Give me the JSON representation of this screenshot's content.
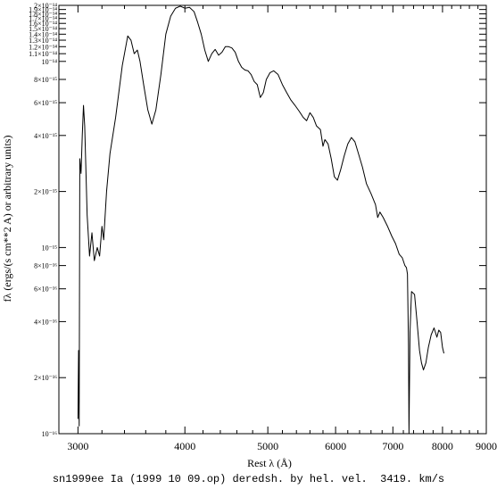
{
  "chart_data": {
    "type": "line",
    "title": "",
    "caption": "sn1999ee Ia (1999 10 09.op) deredsh. by hel. vel.  3419. km/s",
    "xlabel": "Rest λ (Å)",
    "ylabel": "fλ (ergs/(s cm**2 A) or arbitrary units)",
    "x_scale": "log",
    "y_scale": "log",
    "xlim": [
      2850,
      9000
    ],
    "ylim": [
      1e-16,
      2e-14
    ],
    "x_ticks": [
      3000,
      4000,
      5000,
      6000,
      7000,
      8000,
      9000
    ],
    "x_tick_labels": [
      "3000",
      "4000",
      "5000",
      "6000",
      "7000",
      "8000",
      "9000"
    ],
    "y_ticks": [
      1e-16,
      2e-16,
      4e-16,
      6e-16,
      8e-16,
      1e-15,
      2e-15,
      4e-15,
      6e-15,
      8e-15,
      1e-14,
      1.1e-14,
      1.2e-14,
      1.3e-14,
      1.4e-14,
      1.5e-14,
      1.6e-14,
      1.7e-14,
      1.8e-14,
      1.9e-14,
      2e-14
    ],
    "y_tick_labels": [
      "10⁻¹⁶",
      "2×10⁻¹⁶",
      "4×10⁻¹⁶",
      "6×10⁻¹⁶",
      "8×10⁻¹⁶",
      "10⁻¹⁵",
      "2×10⁻¹⁵",
      "4×10⁻¹⁵",
      "6×10⁻¹⁵",
      "8×10⁻¹⁵",
      "10⁻¹⁴",
      "1.1×10⁻¹⁴",
      "1.2×10⁻¹⁴",
      "1.3×10⁻¹⁴",
      "1.4×10⁻¹⁴",
      "1.5×10⁻¹⁴",
      "1.6×10⁻¹⁴",
      "1.7×10⁻¹⁴",
      "1.8×10⁻¹⁴",
      "1.9×10⁻¹⁴",
      "2×10⁻¹⁴"
    ],
    "grid": false,
    "series": [
      {
        "color": "#000000",
        "points": [
          [
            3000,
            1.2e-16
          ],
          [
            3005,
            2.8e-16
          ],
          [
            3010,
            1.1e-16
          ],
          [
            3015,
            3e-15
          ],
          [
            3025,
            2.5e-15
          ],
          [
            3035,
            4e-15
          ],
          [
            3045,
            5.8e-15
          ],
          [
            3055,
            4.5e-15
          ],
          [
            3075,
            1.5e-15
          ],
          [
            3095,
            9e-16
          ],
          [
            3115,
            1.2e-15
          ],
          [
            3135,
            8.5e-16
          ],
          [
            3160,
            1e-15
          ],
          [
            3180,
            9e-16
          ],
          [
            3200,
            1.3e-15
          ],
          [
            3215,
            1.1e-15
          ],
          [
            3240,
            2e-15
          ],
          [
            3270,
            3.2e-15
          ],
          [
            3320,
            5e-15
          ],
          [
            3380,
            9.5e-15
          ],
          [
            3430,
            1.37e-14
          ],
          [
            3460,
            1.3e-14
          ],
          [
            3490,
            1.1e-14
          ],
          [
            3520,
            1.15e-14
          ],
          [
            3545,
            1e-14
          ],
          [
            3580,
            7.5e-15
          ],
          [
            3620,
            5.5e-15
          ],
          [
            3660,
            4.6e-15
          ],
          [
            3700,
            5.5e-15
          ],
          [
            3750,
            8.5e-15
          ],
          [
            3800,
            1.4e-14
          ],
          [
            3850,
            1.75e-14
          ],
          [
            3900,
            1.93e-14
          ],
          [
            3950,
            1.98e-14
          ],
          [
            4000,
            1.93e-14
          ],
          [
            4050,
            1.95e-14
          ],
          [
            4100,
            1.85e-14
          ],
          [
            4140,
            1.62e-14
          ],
          [
            4180,
            1.4e-14
          ],
          [
            4220,
            1.15e-14
          ],
          [
            4260,
            1e-14
          ],
          [
            4300,
            1.1e-14
          ],
          [
            4340,
            1.16e-14
          ],
          [
            4380,
            1.08e-14
          ],
          [
            4420,
            1.12e-14
          ],
          [
            4460,
            1.2e-14
          ],
          [
            4500,
            1.2e-14
          ],
          [
            4540,
            1.18e-14
          ],
          [
            4580,
            1.12e-14
          ],
          [
            4620,
            1e-14
          ],
          [
            4660,
            9.3e-15
          ],
          [
            4700,
            9e-15
          ],
          [
            4740,
            8.9e-15
          ],
          [
            4780,
            8.5e-15
          ],
          [
            4820,
            7.8e-15
          ],
          [
            4860,
            7.5e-15
          ],
          [
            4900,
            6.4e-15
          ],
          [
            4940,
            6.8e-15
          ],
          [
            4980,
            8e-15
          ],
          [
            5030,
            8.7e-15
          ],
          [
            5080,
            8.9e-15
          ],
          [
            5140,
            8.5e-15
          ],
          [
            5200,
            7.5e-15
          ],
          [
            5260,
            6.8e-15
          ],
          [
            5320,
            6.2e-15
          ],
          [
            5380,
            5.8e-15
          ],
          [
            5440,
            5.4e-15
          ],
          [
            5500,
            5e-15
          ],
          [
            5550,
            4.8e-15
          ],
          [
            5600,
            5.3e-15
          ],
          [
            5650,
            5e-15
          ],
          [
            5700,
            4.5e-15
          ],
          [
            5760,
            4.3e-15
          ],
          [
            5800,
            3.5e-15
          ],
          [
            5830,
            3.8e-15
          ],
          [
            5880,
            3.6e-15
          ],
          [
            5930,
            3e-15
          ],
          [
            5980,
            2.4e-15
          ],
          [
            6030,
            2.3e-15
          ],
          [
            6080,
            2.6e-15
          ],
          [
            6140,
            3.1e-15
          ],
          [
            6200,
            3.6e-15
          ],
          [
            6260,
            3.9e-15
          ],
          [
            6320,
            3.7e-15
          ],
          [
            6380,
            3.2e-15
          ],
          [
            6450,
            2.7e-15
          ],
          [
            6520,
            2.2e-15
          ],
          [
            6600,
            1.95e-15
          ],
          [
            6680,
            1.7e-15
          ],
          [
            6720,
            1.45e-15
          ],
          [
            6760,
            1.55e-15
          ],
          [
            6820,
            1.45e-15
          ],
          [
            6900,
            1.3e-15
          ],
          [
            6980,
            1.15e-15
          ],
          [
            7050,
            1.05e-15
          ],
          [
            7120,
            9.2e-16
          ],
          [
            7180,
            8.8e-16
          ],
          [
            7230,
            8e-16
          ],
          [
            7260,
            7.8e-16
          ],
          [
            7280,
            7.2e-16
          ],
          [
            7300,
            3e-16
          ],
          [
            7310,
            1e-16
          ],
          [
            7330,
            3.5e-16
          ],
          [
            7360,
            5.8e-16
          ],
          [
            7420,
            5.6e-16
          ],
          [
            7470,
            4e-16
          ],
          [
            7520,
            2.8e-16
          ],
          [
            7560,
            2.4e-16
          ],
          [
            7600,
            2.2e-16
          ],
          [
            7650,
            2.4e-16
          ],
          [
            7700,
            2.9e-16
          ],
          [
            7760,
            3.4e-16
          ],
          [
            7820,
            3.7e-16
          ],
          [
            7880,
            3.3e-16
          ],
          [
            7920,
            3.6e-16
          ],
          [
            7960,
            3.5e-16
          ],
          [
            8000,
            2.9e-16
          ],
          [
            8030,
            2.7e-16
          ]
        ]
      }
    ]
  }
}
